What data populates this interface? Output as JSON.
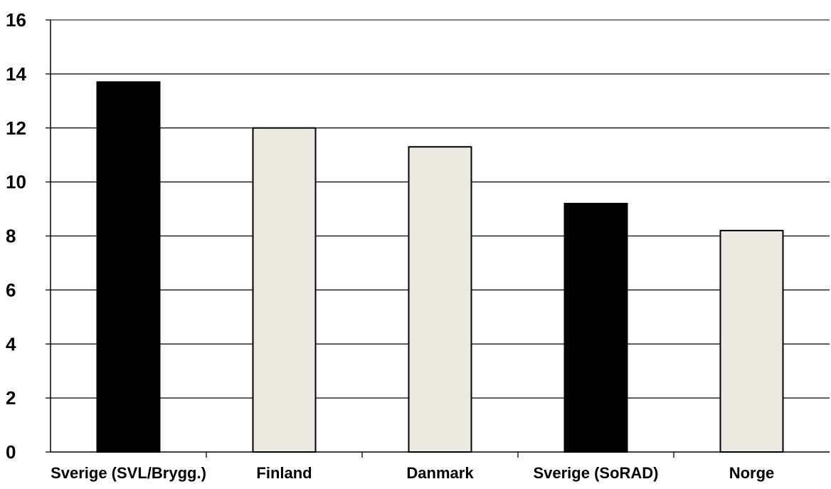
{
  "chart_data": {
    "type": "bar",
    "categories": [
      "Sverige (SVL/Brygg.)",
      "Finland",
      "Danmark",
      "Sverige (SoRAD)",
      "Norge"
    ],
    "values": [
      13.7,
      12.0,
      11.3,
      9.2,
      8.2
    ],
    "bar_colors": [
      "#000000",
      "#ece9e0",
      "#ece9e0",
      "#000000",
      "#ece9e0"
    ],
    "ylim": [
      0,
      16
    ],
    "yticks": [
      0,
      2,
      4,
      6,
      8,
      10,
      12,
      14,
      16
    ],
    "grid": true,
    "legend": "none"
  }
}
